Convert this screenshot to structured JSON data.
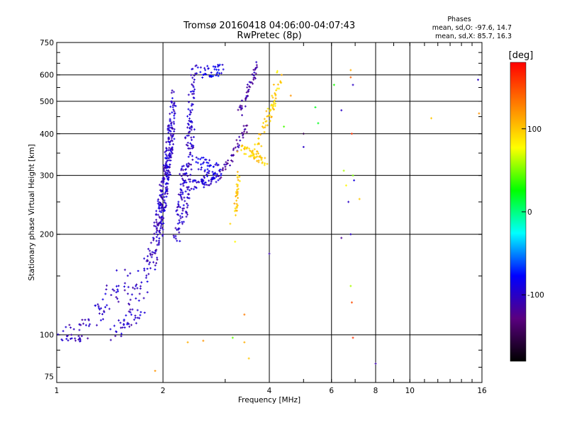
{
  "chart_data": {
    "type": "scatter",
    "title": "Tromsø 20160418 04:06:00-04:07:43",
    "subtitle": "RwPretec (8p)",
    "xlabel": "Frequency [MHz]",
    "ylabel": "Stationary phase Virtual Height [km]",
    "x_scale": "log",
    "y_scale": "log",
    "xlim": [
      1,
      16
    ],
    "ylim": [
      72,
      750
    ],
    "x_ticks": [
      1,
      2,
      4,
      6,
      8,
      10,
      16
    ],
    "x_tick_labels": [
      "1",
      "2",
      "4",
      "6",
      "8",
      "10",
      "16"
    ],
    "y_ticks": [
      75,
      100,
      200,
      300,
      400,
      500,
      600,
      750
    ],
    "y_tick_labels": [
      "75",
      "100",
      "200",
      "300",
      "400",
      "500",
      "600",
      "750"
    ],
    "grid": true,
    "phase_stats": {
      "heading": "Phases",
      "o_line": "mean, sd,O: -97.6, 14.7",
      "x_line": "mean, sd,X:  85.7, 16.3"
    },
    "colorbar": {
      "label": "[deg]",
      "range": [
        -180,
        180
      ],
      "ticks": [
        100,
        0,
        -100
      ],
      "tick_labels": [
        "100",
        "0",
        "-100"
      ],
      "colors": [
        "#000000",
        "#5a0080",
        "#0000ff",
        "#00ffff",
        "#00ff00",
        "#ffff00",
        "#ff8000",
        "#ff0000"
      ]
    },
    "traces": [
      {
        "from": [
          1.02,
          98
        ],
        "to": [
          1.2,
          98
        ],
        "phase": -103,
        "n": 22,
        "jx": 0.04,
        "jy": 0.03
      },
      {
        "from": [
          1.05,
          105
        ],
        "to": [
          1.3,
          108
        ],
        "phase": -104,
        "n": 18,
        "jx": 0.04,
        "jy": 0.04
      },
      {
        "from": [
          1.3,
          115
        ],
        "to": [
          1.55,
          150
        ],
        "phase": -102,
        "n": 40,
        "jx": 0.06,
        "jy": 0.08
      },
      {
        "from": [
          1.45,
          100
        ],
        "to": [
          1.7,
          115
        ],
        "phase": -100,
        "n": 30,
        "jx": 0.05,
        "jy": 0.06
      },
      {
        "from": [
          1.6,
          115
        ],
        "to": [
          1.85,
          170
        ],
        "phase": -100,
        "n": 40,
        "jx": 0.05,
        "jy": 0.08
      },
      {
        "from": [
          1.85,
          160
        ],
        "to": [
          2.05,
          310
        ],
        "phase": -102,
        "n": 90,
        "jx": 0.03,
        "jy": 0.06
      },
      {
        "from": [
          1.95,
          200
        ],
        "to": [
          2.12,
          420
        ],
        "phase": -100,
        "n": 130,
        "jx": 0.025,
        "jy": 0.05
      },
      {
        "from": [
          2.05,
          300
        ],
        "to": [
          2.15,
          520
        ],
        "phase": -98,
        "n": 80,
        "jx": 0.02,
        "jy": 0.04
      },
      {
        "from": [
          2.18,
          190
        ],
        "to": [
          2.3,
          330
        ],
        "phase": -100,
        "n": 60,
        "jx": 0.02,
        "jy": 0.05
      },
      {
        "from": [
          2.3,
          220
        ],
        "to": [
          2.42,
          430
        ],
        "phase": -100,
        "n": 80,
        "jx": 0.02,
        "jy": 0.05
      },
      {
        "from": [
          2.35,
          380
        ],
        "to": [
          2.45,
          640
        ],
        "phase": -98,
        "n": 50,
        "jx": 0.02,
        "jy": 0.04
      },
      {
        "from": [
          2.45,
          280
        ],
        "to": [
          2.85,
          300
        ],
        "phase": -95,
        "n": 60,
        "jx": 0.025,
        "jy": 0.04
      },
      {
        "from": [
          2.5,
          330
        ],
        "to": [
          2.9,
          310
        ],
        "phase": -90,
        "n": 40,
        "jx": 0.025,
        "jy": 0.04
      },
      {
        "from": [
          2.55,
          610
        ],
        "to": [
          2.95,
          620
        ],
        "phase": -85,
        "n": 40,
        "jx": 0.025,
        "jy": 0.04
      },
      {
        "from": [
          2.9,
          295
        ],
        "to": [
          3.45,
          420
        ],
        "phase": -118,
        "n": 45,
        "jx": 0.015,
        "jy": 0.03
      },
      {
        "from": [
          3.3,
          460
        ],
        "to": [
          3.7,
          640
        ],
        "phase": -112,
        "n": 45,
        "jx": 0.015,
        "jy": 0.03
      },
      {
        "from": [
          3.2,
          230
        ],
        "to": [
          3.28,
          300
        ],
        "phase": 100,
        "n": 30,
        "jx": 0.01,
        "jy": 0.04
      },
      {
        "from": [
          3.3,
          360
        ],
        "to": [
          3.9,
          330
        ],
        "phase": 100,
        "n": 45,
        "jx": 0.02,
        "jy": 0.03
      },
      {
        "from": [
          3.6,
          335
        ],
        "to": [
          4.15,
          520
        ],
        "phase": 98,
        "n": 45,
        "jx": 0.02,
        "jy": 0.03
      },
      {
        "from": [
          4.0,
          440
        ],
        "to": [
          4.3,
          610
        ],
        "phase": 95,
        "n": 25,
        "jx": 0.02,
        "jy": 0.03
      }
    ],
    "sparse_points": [
      [
        4.0,
        175,
        -110
      ],
      [
        4.4,
        420,
        40
      ],
      [
        4.6,
        520,
        120
      ],
      [
        5.0,
        400,
        -150
      ],
      [
        5.0,
        365,
        -100
      ],
      [
        5.4,
        480,
        20
      ],
      [
        5.5,
        430,
        20
      ],
      [
        6.1,
        560,
        30
      ],
      [
        6.4,
        470,
        -100
      ],
      [
        6.4,
        195,
        -120
      ],
      [
        6.5,
        310,
        60
      ],
      [
        6.6,
        280,
        80
      ],
      [
        6.7,
        250,
        -100
      ],
      [
        6.8,
        200,
        -100
      ],
      [
        6.8,
        620,
        110
      ],
      [
        6.8,
        590,
        140
      ],
      [
        6.9,
        560,
        -100
      ],
      [
        6.85,
        400,
        160
      ],
      [
        6.9,
        300,
        50
      ],
      [
        6.95,
        290,
        -90
      ],
      [
        7.2,
        255,
        100
      ],
      [
        6.8,
        140,
        60
      ],
      [
        6.85,
        125,
        150
      ],
      [
        6.9,
        98,
        160
      ],
      [
        8.0,
        82,
        -110
      ],
      [
        11.5,
        445,
        100
      ],
      [
        15.6,
        580,
        -100
      ],
      [
        15.7,
        460,
        120
      ],
      [
        3.1,
        215,
        95
      ],
      [
        3.2,
        190,
        80
      ],
      [
        3.4,
        115,
        130
      ],
      [
        3.4,
        95,
        110
      ],
      [
        3.5,
        85,
        100
      ],
      [
        2.6,
        96,
        120
      ],
      [
        1.9,
        78,
        120
      ],
      [
        2.35,
        95,
        110
      ],
      [
        3.15,
        98,
        45
      ]
    ]
  }
}
